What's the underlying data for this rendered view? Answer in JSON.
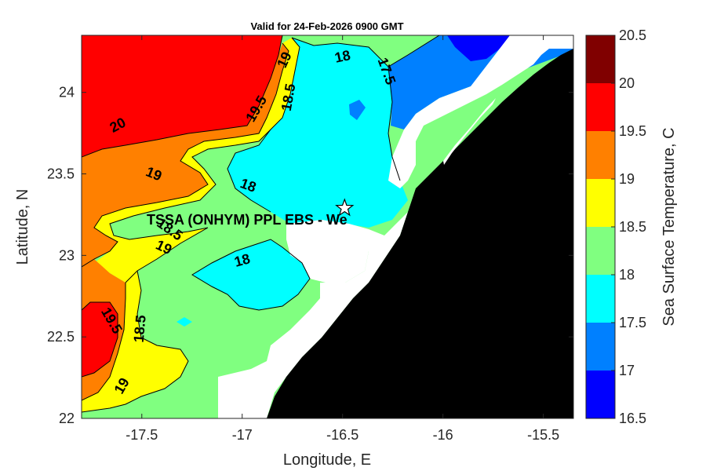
{
  "chart_data": {
    "type": "heatmap",
    "title": "Valid for 24-Feb-2026 0900 GMT",
    "xlabel": "Longitude, E",
    "ylabel": "Latitude, N",
    "xlim": [
      -17.8,
      -15.35
    ],
    "ylim": [
      22.0,
      24.35
    ],
    "xticks": [
      -17.5,
      -17,
      -16.5,
      -16,
      -15.5
    ],
    "yticks": [
      22,
      22.5,
      23,
      23.5,
      24
    ],
    "colorbar": {
      "label": "Sea Surface Temperature, C",
      "levels": [
        16.5,
        17,
        17.5,
        18,
        18.5,
        19,
        19.5,
        20,
        20.5
      ],
      "colors": [
        "#0000ff",
        "#0080ff",
        "#00ffff",
        "#80ff80",
        "#ffff00",
        "#ff8000",
        "#ff0000",
        "#800000"
      ]
    },
    "contour_labels": [
      {
        "text": "20",
        "lon": -17.62,
        "lat": 23.8,
        "angle": -28
      },
      {
        "text": "19.5",
        "lon": -16.93,
        "lat": 23.9,
        "angle": -60
      },
      {
        "text": "19",
        "lon": -16.79,
        "lat": 24.2,
        "angle": -65
      },
      {
        "text": "18.5",
        "lon": -16.77,
        "lat": 23.97,
        "angle": -80
      },
      {
        "text": "18",
        "lon": -16.5,
        "lat": 24.22,
        "angle": -12
      },
      {
        "text": "17.5",
        "lon": -16.28,
        "lat": 24.13,
        "angle": 70
      },
      {
        "text": "19",
        "lon": -17.44,
        "lat": 23.5,
        "angle": 22
      },
      {
        "text": "18",
        "lon": -16.97,
        "lat": 23.43,
        "angle": 20
      },
      {
        "text": "18.5",
        "lon": -17.36,
        "lat": 23.16,
        "angle": 35
      },
      {
        "text": "19",
        "lon": -17.39,
        "lat": 23.05,
        "angle": 25
      },
      {
        "text": "18",
        "lon": -17.0,
        "lat": 22.97,
        "angle": -15
      },
      {
        "text": "19.5",
        "lon": -17.65,
        "lat": 22.6,
        "angle": 60
      },
      {
        "text": "18.5",
        "lon": -17.51,
        "lat": 22.55,
        "angle": -85
      },
      {
        "text": "19",
        "lon": -17.6,
        "lat": 22.2,
        "angle": -60
      }
    ],
    "station": {
      "label": "TSSA (ONHYM) PPL EBS  - We",
      "lon": -16.49,
      "lat": 23.29
    }
  }
}
